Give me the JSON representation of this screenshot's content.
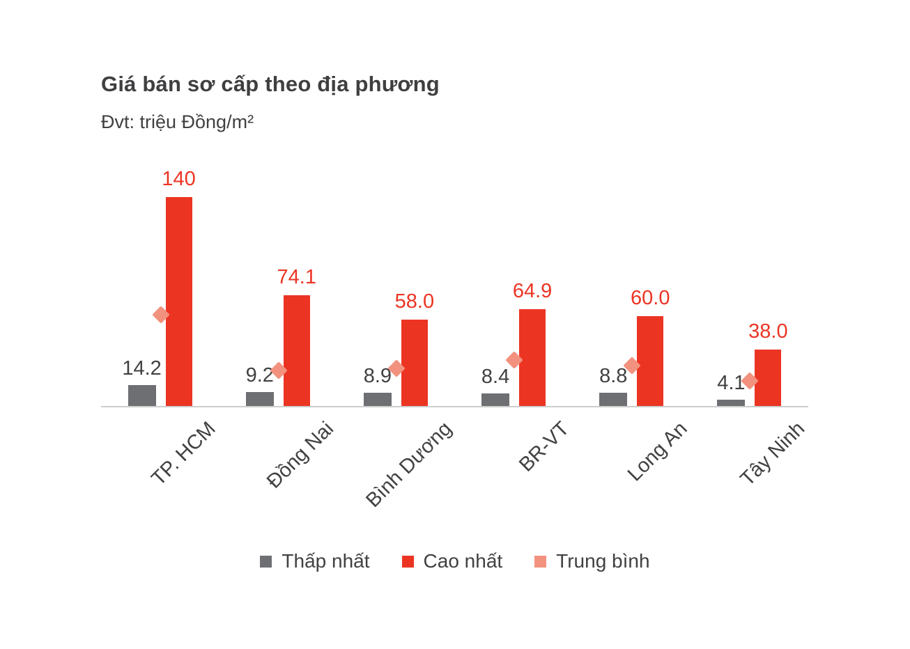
{
  "chart": {
    "title": "Giá bán sơ cấp theo địa phương",
    "unit_label": "Đvt: triệu Đồng/m²"
  },
  "colors": {
    "lowest_bar": "#6e6f72",
    "highest_bar": "#ec3423",
    "average_marker": "#f2927e",
    "text": "#414042",
    "axis": "#cdcdcd",
    "background": "#ffffff"
  },
  "chart_data": {
    "type": "bar",
    "title": "Giá bán sơ cấp theo địa phương",
    "unit": "triệu Đồng/m²",
    "categories": [
      "TP. HCM",
      "Đồng Nai",
      "Bình Dương",
      "BR-VT",
      "Long An",
      "Tây Ninh"
    ],
    "series": [
      {
        "name": "Thấp nhất",
        "type": "bar",
        "color": "#6e6f72",
        "values": [
          14.2,
          9.2,
          8.9,
          8.4,
          8.8,
          4.1
        ],
        "labels": [
          "14.2",
          "9.2",
          "8.9",
          "8.4",
          "8.8",
          "4.1"
        ]
      },
      {
        "name": "Cao nhất",
        "type": "bar",
        "color": "#ec3423",
        "values": [
          140,
          74.1,
          58.0,
          64.9,
          60.0,
          38.0
        ],
        "labels": [
          "140",
          "74.1",
          "58.0",
          "64.9",
          "60.0",
          "38.0"
        ]
      },
      {
        "name": "Trung bình",
        "type": "scatter-diamond",
        "color": "#f2927e",
        "values": [
          61,
          24,
          25,
          31,
          27,
          17
        ],
        "values_note": "estimated from marker positions; no data labels shown in chart"
      }
    ],
    "ylim": [
      0,
      140
    ],
    "grid": false,
    "y_axis_visible": false,
    "data_labels": true,
    "legend_position": "bottom"
  }
}
